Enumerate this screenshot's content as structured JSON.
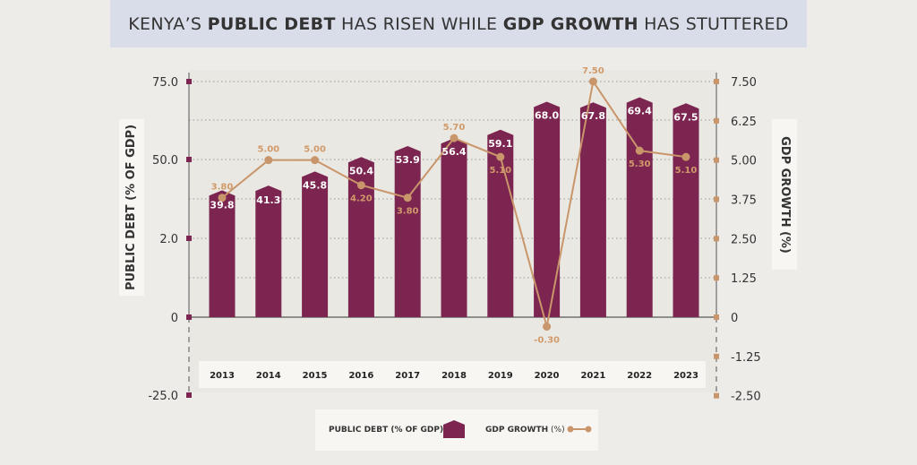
{
  "title": {
    "part1": "KENYA’S ",
    "part2": "PUBLIC DEBT",
    "part3": " HAS RISEN WHILE ",
    "part4": "GDP GROWTH",
    "part5": " HAS STUTTERED"
  },
  "colors": {
    "bar": "#7b2550",
    "line": "#c9956a",
    "label_on_line": "#d19a6a",
    "grid": "#9a9a9a"
  },
  "chart_data": {
    "type": "bar+line",
    "categories": [
      "2013",
      "2014",
      "2015",
      "2016",
      "2017",
      "2018",
      "2019",
      "2020",
      "2021",
      "2022",
      "2023"
    ],
    "series": [
      {
        "name": "PUBLIC DEBT (% OF GDP)",
        "kind": "bar",
        "axis": "left",
        "values": [
          39.8,
          41.3,
          45.8,
          50.4,
          53.9,
          56.4,
          59.1,
          68.0,
          67.8,
          69.4,
          67.5
        ],
        "labels": [
          "39.8",
          "41.3",
          "45.8",
          "50.4",
          "53.9",
          "56.4",
          "59.1",
          "68.0",
          "67.8",
          "69.4",
          "67.5"
        ]
      },
      {
        "name": "GDP GROWTH (%)",
        "kind": "line",
        "axis": "right",
        "values": [
          3.8,
          5.0,
          5.0,
          4.2,
          3.8,
          5.7,
          5.1,
          -0.3,
          7.5,
          5.3,
          5.1
        ],
        "labels": [
          "3.80",
          "5.00",
          "5.00",
          "4.20",
          "3.80",
          "5.70",
          "5.10",
          "-0.30",
          "7.50",
          "5.30",
          "5.10"
        ]
      }
    ],
    "left_axis": {
      "label": "PUBLIC DEBT (% OF GDP)",
      "ticks": [
        75.0,
        50.0,
        2.0,
        0,
        -25.0
      ],
      "tick_labels": [
        "75.0",
        "50.0",
        "2.0",
        "0",
        "-25.0"
      ],
      "range": [
        -25,
        75
      ]
    },
    "right_axis": {
      "label": "GDP GROWTH (%)",
      "ticks": [
        7.5,
        6.25,
        5.0,
        3.75,
        2.5,
        1.25,
        0,
        -1.25,
        -2.5
      ],
      "tick_labels": [
        "7.50",
        "6.25",
        "5.00",
        "3.75",
        "2.50",
        "1.25",
        "0",
        "-1.25",
        "-2.50"
      ],
      "range": [
        -2.5,
        7.5
      ]
    },
    "grid": true,
    "legend": {
      "position": "bottom",
      "items": [
        {
          "label": "PUBLIC DEBT (% OF GDP)",
          "marker": "bar"
        },
        {
          "label": "GDP GROWTH",
          "suffix": " (%)",
          "marker": "line"
        }
      ]
    }
  }
}
